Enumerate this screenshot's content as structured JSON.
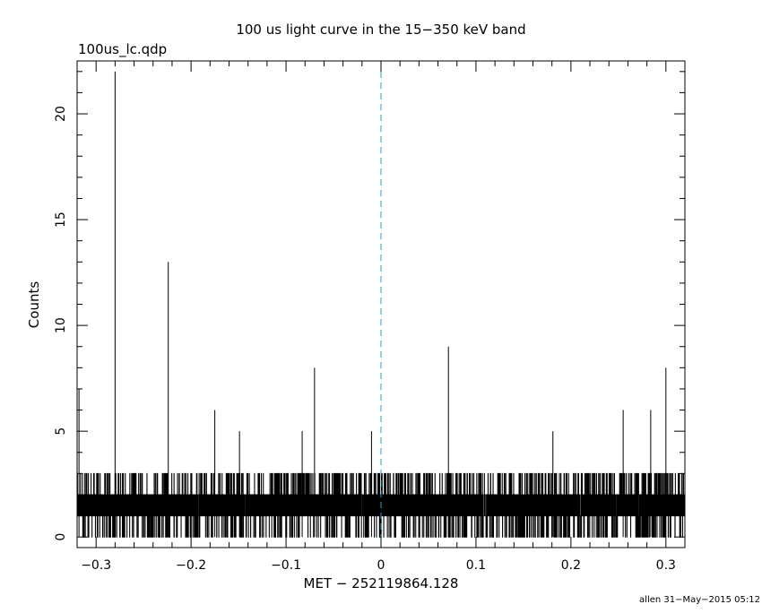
{
  "chart_data": {
    "type": "bar",
    "title": "100 us light curve in the 15−350 keV band",
    "file_label": "100us_lc.qdp",
    "xlabel": "MET − 252119864.128",
    "ylabel": "Counts",
    "footer": "allen 31−May−2015 05:12",
    "xlim": [
      -0.32,
      0.32
    ],
    "ylim": [
      -0.5,
      22.5
    ],
    "xticks": [
      -0.3,
      -0.2,
      -0.1,
      0,
      0.1,
      0.2,
      0.3
    ],
    "xtick_labels": [
      "−0.3",
      "−0.2",
      "−0.1",
      "0",
      "0.1",
      "0.2",
      "0.3"
    ],
    "yticks": [
      0,
      5,
      10,
      15,
      20
    ],
    "ytick_labels": [
      "0",
      "5",
      "10",
      "15",
      "20"
    ],
    "bin_width": 0.0001,
    "background_bins": "random 0–3 counts per 100 us bin (dense noise, rendered procedurally)",
    "marker_line_x": 0,
    "marker_line_color": "#2a9bc8",
    "peaks": [
      {
        "x": -0.318,
        "y": 7
      },
      {
        "x": -0.28,
        "y": 22
      },
      {
        "x": -0.224,
        "y": 13
      },
      {
        "x": -0.175,
        "y": 6
      },
      {
        "x": -0.149,
        "y": 5
      },
      {
        "x": -0.083,
        "y": 5
      },
      {
        "x": -0.07,
        "y": 8
      },
      {
        "x": -0.01,
        "y": 5
      },
      {
        "x": 0.071,
        "y": 9
      },
      {
        "x": 0.181,
        "y": 5
      },
      {
        "x": 0.255,
        "y": 6
      },
      {
        "x": 0.284,
        "y": 6
      },
      {
        "x": 0.3,
        "y": 8
      }
    ]
  }
}
